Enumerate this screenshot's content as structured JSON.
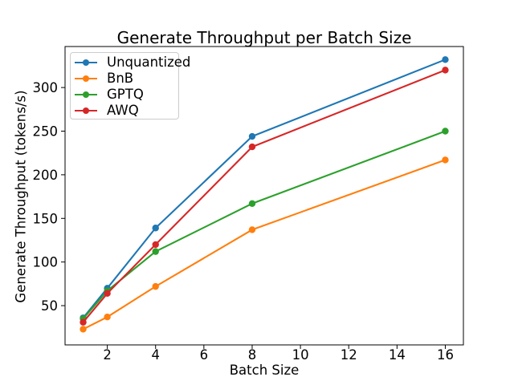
{
  "figure": {
    "background": "#ffffff",
    "axis_color": "#000000"
  },
  "chart_data": {
    "type": "line",
    "title": "Generate Throughput per Batch Size",
    "xlabel": "Batch Size",
    "ylabel": "Generate Throughput (tokens/s)",
    "x": [
      1,
      2,
      4,
      8,
      16
    ],
    "series": [
      {
        "name": "Unquantized",
        "color": "#1f77b4",
        "values": [
          36,
          70,
          139,
          244,
          332
        ]
      },
      {
        "name": "BnB",
        "color": "#ff7f0e",
        "values": [
          23,
          37,
          72,
          137,
          217
        ]
      },
      {
        "name": "GPTQ",
        "color": "#2ca02c",
        "values": [
          35,
          67,
          112,
          167,
          250
        ]
      },
      {
        "name": "AWQ",
        "color": "#d62728",
        "values": [
          31,
          64,
          120,
          232,
          320
        ]
      }
    ],
    "xticks": [
      2,
      4,
      6,
      8,
      10,
      12,
      14,
      16
    ],
    "yticks": [
      50,
      100,
      150,
      200,
      250,
      300
    ],
    "xlim": [
      0.25,
      16.75
    ],
    "ylim": [
      5,
      347
    ],
    "grid": false,
    "legend_position": "upper-left",
    "marker": "circle"
  }
}
